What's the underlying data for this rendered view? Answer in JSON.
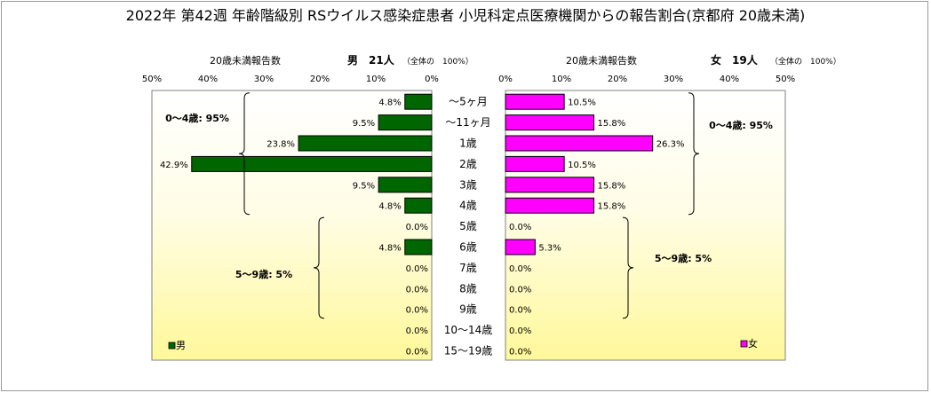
{
  "title": "2022年 第42週 年齢階級別 RSウイルス感染症患者 小児科定点医療機関からの報告割合(京都府 20歳未満)",
  "chart_data": [
    {
      "type": "bar",
      "orientation": "horizontal",
      "direction": "leftward",
      "series_name": "男",
      "header_label": "20歳未満報告数",
      "header_value": "男　21人",
      "header_note": "（全体の　100%）",
      "categories": [
        "～5ヶ月",
        "～11ヶ月",
        "1歳",
        "2歳",
        "3歳",
        "4歳",
        "5歳",
        "6歳",
        "7歳",
        "8歳",
        "9歳",
        "10～14歳",
        "15～19歳"
      ],
      "values": [
        4.8,
        9.5,
        23.8,
        42.9,
        9.5,
        4.8,
        0.0,
        4.8,
        0.0,
        0.0,
        0.0,
        0.0,
        0.0
      ],
      "value_labels": [
        "4.8%",
        "9.5%",
        "23.8%",
        "42.9%",
        "9.5%",
        "4.8%",
        "0.0%",
        "4.8%",
        "0.0%",
        "0.0%",
        "0.0%",
        "0.0%",
        "0.0%"
      ],
      "xlim": [
        0,
        50
      ],
      "ticks": [
        "50%",
        "40%",
        "30%",
        "20%",
        "10%",
        "0%"
      ],
      "legend": "男",
      "legend_position": "bottom-left",
      "group_labels": [
        {
          "text": "0～4歳: 95%",
          "from": "～5ヶ月",
          "to": "4歳"
        },
        {
          "text": "5～9歳: 5%",
          "from": "5歳",
          "to": "9歳"
        }
      ],
      "bar_color": "#006600",
      "background": "yellow-gradient"
    },
    {
      "type": "bar",
      "orientation": "horizontal",
      "direction": "rightward",
      "series_name": "女",
      "header_label": "20歳未満報告数",
      "header_value": "女　19人",
      "header_note": "（全体の　100%）",
      "categories": [
        "～5ヶ月",
        "～11ヶ月",
        "1歳",
        "2歳",
        "3歳",
        "4歳",
        "5歳",
        "6歳",
        "7歳",
        "8歳",
        "9歳",
        "10～14歳",
        "15～19歳"
      ],
      "values": [
        10.5,
        15.8,
        26.3,
        10.5,
        15.8,
        15.8,
        0.0,
        5.3,
        0.0,
        0.0,
        0.0,
        0.0,
        0.0
      ],
      "value_labels": [
        "10.5%",
        "15.8%",
        "26.3%",
        "10.5%",
        "15.8%",
        "15.8%",
        "0.0%",
        "5.3%",
        "0.0%",
        "0.0%",
        "0.0%",
        "0.0%",
        "0.0%"
      ],
      "xlim": [
        0,
        50
      ],
      "ticks": [
        "0%",
        "10%",
        "20%",
        "30%",
        "40%",
        "50%"
      ],
      "legend": "女",
      "legend_position": "bottom-right",
      "group_labels": [
        {
          "text": "0～4歳: 95%",
          "from": "～5ヶ月",
          "to": "4歳"
        },
        {
          "text": "5～9歳: 5%",
          "from": "5歳",
          "to": "9歳"
        }
      ],
      "bar_color": "#ff00ff",
      "background": "yellow-gradient"
    }
  ]
}
